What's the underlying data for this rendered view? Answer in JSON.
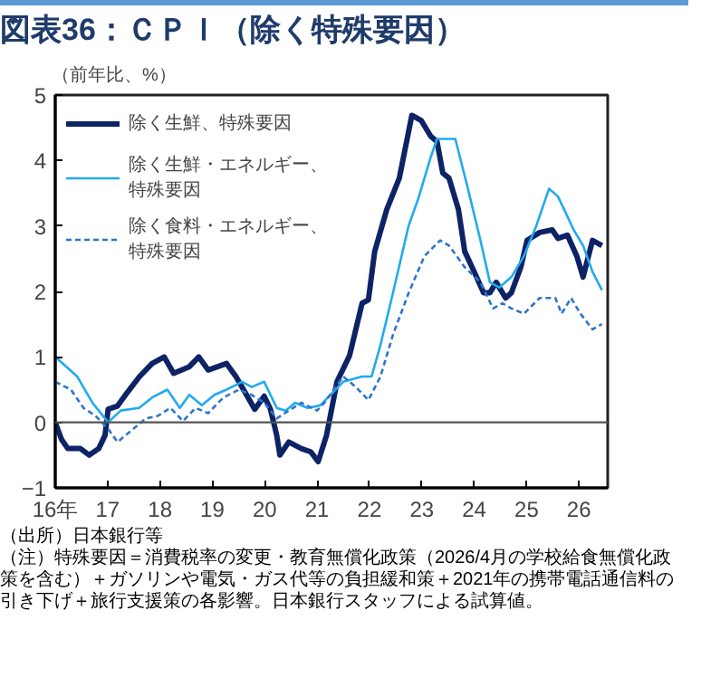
{
  "chart_data": {
    "type": "line",
    "title": "図表36：ＣＰＩ（除く特殊要因）",
    "ylabel": "（前年比、%）",
    "xlim": [
      16,
      26.55
    ],
    "ylim": [
      -1,
      5
    ],
    "xticks": [
      {
        "value": 16,
        "label": "16年"
      },
      17,
      18,
      19,
      20,
      21,
      22,
      23,
      24,
      25,
      26
    ],
    "yticks": [
      -1,
      0,
      1,
      2,
      3,
      4,
      5
    ],
    "grid": false,
    "legend": "top left",
    "marker": "none",
    "ref_lines": [
      {
        "axis": "y",
        "value": 0,
        "color": "#555555"
      }
    ],
    "series": [
      {
        "name": "除く生鮮、特殊要因",
        "color": "#0d2366",
        "line_style": "solid",
        "x": [
          16.0,
          16.12,
          16.24,
          16.48,
          16.65,
          16.83,
          16.95,
          17.01,
          17.19,
          17.37,
          17.61,
          17.85,
          18.08,
          18.26,
          18.56,
          18.74,
          18.92,
          19.1,
          19.27,
          19.45,
          19.63,
          19.81,
          19.99,
          20.11,
          20.23,
          20.29,
          20.46,
          20.7,
          20.88,
          21.02,
          21.18,
          21.38,
          21.62,
          21.86,
          21.98,
          22.1,
          22.33,
          22.57,
          22.69,
          22.81,
          22.99,
          23.17,
          23.29,
          23.4,
          23.52,
          23.7,
          23.82,
          24.0,
          24.18,
          24.3,
          24.42,
          24.6,
          24.71,
          24.89,
          25.01,
          25.25,
          25.49,
          25.6,
          25.78,
          25.96,
          26.08,
          26.26,
          26.44
        ],
        "values": [
          0.0,
          -0.26,
          -0.4,
          -0.4,
          -0.5,
          -0.4,
          -0.2,
          0.2,
          0.25,
          0.45,
          0.7,
          0.9,
          1.0,
          0.75,
          0.85,
          1.0,
          0.8,
          0.85,
          0.9,
          0.7,
          0.45,
          0.2,
          0.4,
          0.2,
          -0.2,
          -0.5,
          -0.3,
          -0.4,
          -0.45,
          -0.6,
          -0.2,
          0.62,
          1.02,
          1.82,
          1.87,
          2.61,
          3.25,
          3.73,
          4.21,
          4.69,
          4.61,
          4.37,
          4.29,
          3.81,
          3.73,
          3.25,
          2.61,
          2.3,
          1.98,
          1.98,
          2.14,
          1.9,
          1.98,
          2.37,
          2.78,
          2.9,
          2.94,
          2.81,
          2.86,
          2.54,
          2.22,
          2.78,
          2.7
        ]
      },
      {
        "name": "除く生鮮・エネルギー、特殊要因",
        "color": "#22aaee",
        "line_style": "solid",
        "x": [
          16.0,
          16.42,
          16.71,
          17.01,
          17.25,
          17.6,
          17.85,
          18.14,
          18.38,
          18.56,
          18.8,
          19.04,
          19.27,
          19.57,
          19.75,
          19.99,
          20.23,
          20.4,
          20.58,
          20.82,
          21.06,
          21.5,
          21.86,
          22.04,
          22.21,
          22.45,
          22.75,
          22.93,
          23.17,
          23.29,
          23.64,
          23.88,
          24.12,
          24.3,
          24.48,
          24.71,
          24.95,
          25.19,
          25.43,
          25.6,
          25.72,
          25.9,
          26.08,
          26.26,
          26.44
        ],
        "values": [
          1.0,
          0.7,
          0.3,
          0.0,
          0.18,
          0.22,
          0.38,
          0.5,
          0.22,
          0.42,
          0.26,
          0.42,
          0.5,
          0.62,
          0.54,
          0.62,
          0.22,
          0.18,
          0.3,
          0.22,
          0.26,
          0.62,
          0.7,
          0.7,
          1.18,
          1.98,
          3.01,
          3.41,
          4.05,
          4.33,
          4.33,
          3.57,
          2.78,
          2.14,
          2.06,
          2.22,
          2.54,
          3.01,
          3.57,
          3.45,
          3.25,
          2.94,
          2.7,
          2.3,
          2.02
        ]
      },
      {
        "name": "除く食料・エネルギー、特殊要因",
        "color": "#2e75c8",
        "line_style": "dashed",
        "x": [
          16.0,
          16.3,
          16.54,
          16.77,
          17.01,
          17.19,
          17.43,
          17.73,
          17.96,
          18.2,
          18.44,
          18.68,
          18.92,
          19.21,
          19.51,
          19.75,
          19.99,
          20.23,
          20.46,
          20.7,
          21.0,
          21.14,
          21.5,
          21.74,
          21.98,
          22.21,
          22.45,
          22.75,
          23.05,
          23.35,
          23.52,
          23.82,
          24.12,
          24.36,
          24.54,
          24.71,
          24.95,
          25.25,
          25.55,
          25.67,
          25.85,
          26.03,
          26.26,
          26.44
        ],
        "values": [
          0.62,
          0.5,
          0.22,
          0.1,
          -0.1,
          -0.3,
          -0.14,
          0.06,
          0.1,
          0.22,
          0.02,
          0.22,
          0.14,
          0.38,
          0.5,
          0.42,
          0.3,
          0.06,
          0.18,
          0.3,
          0.18,
          0.3,
          0.7,
          0.54,
          0.34,
          0.7,
          1.34,
          1.98,
          2.54,
          2.78,
          2.7,
          2.37,
          2.14,
          1.74,
          1.82,
          1.74,
          1.66,
          1.9,
          1.9,
          1.66,
          1.9,
          1.66,
          1.42,
          1.5
        ]
      }
    ],
    "annotations": [
      "（出所）日本銀行等",
      "（注）特殊要因＝消費税率の変更・教育無償化政策（2026/4月の学校給食無償化政策を含む）＋ガソリンや電気・ガス代等の負担緩和策＋2021年の携帯電話通信料の引き下げ＋旅行支援策の各影響。日本銀行スタッフによる試算値。"
    ]
  }
}
